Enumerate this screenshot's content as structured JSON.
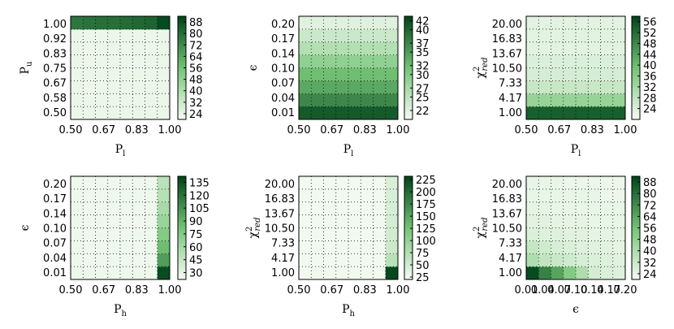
{
  "colormap": {
    "low": "#f7fcf5",
    "mid": "#74c476",
    "high": "#00441b"
  },
  "chart_data": [
    {
      "type": "heatmap",
      "xlabel": "Pl",
      "xlabel_sub": "l",
      "xlabel_base": "P",
      "ylabel_base": "P",
      "ylabel_sub": "u",
      "x_ticks": [
        "0.50",
        "0.67",
        "0.83",
        "1.00"
      ],
      "y_ticks": [
        "0.50",
        "0.58",
        "0.67",
        "0.75",
        "0.83",
        "0.92",
        "1.00"
      ],
      "colorbar_ticks": [
        "24",
        "32",
        "40",
        "48",
        "56",
        "64",
        "72",
        "80",
        "88"
      ],
      "vmin": 20,
      "vmax": 92,
      "values": [
        [
          23,
          23,
          23,
          23,
          23,
          23,
          23,
          23
        ],
        [
          23,
          23,
          23,
          23,
          23,
          23,
          23,
          23
        ],
        [
          23,
          23,
          23,
          23,
          23,
          23,
          23,
          23
        ],
        [
          23,
          23,
          23,
          23,
          23,
          23,
          23,
          23
        ],
        [
          23,
          23,
          23,
          23,
          23,
          23,
          23,
          23
        ],
        [
          23,
          23,
          23,
          23,
          23,
          23,
          23,
          23
        ],
        [
          23,
          23,
          23,
          23,
          23,
          23,
          23,
          23
        ],
        [
          78,
          79,
          80,
          80,
          81,
          82,
          83,
          90
        ]
      ]
    },
    {
      "type": "heatmap",
      "xlabel_base": "P",
      "xlabel_sub": "l",
      "ylabel_symbol": "ϵ",
      "x_ticks": [
        "0.50",
        "0.67",
        "0.83",
        "1.00"
      ],
      "y_ticks": [
        "0.01",
        "0.04",
        "0.07",
        "0.10",
        "0.14",
        "0.17",
        "0.20"
      ],
      "colorbar_ticks": [
        "22",
        "25",
        "27",
        "30",
        "32",
        "35",
        "37",
        "40",
        "42"
      ],
      "vmin": 20,
      "vmax": 43,
      "values": [
        [
          41,
          41,
          41,
          41,
          41,
          41,
          41,
          41
        ],
        [
          37,
          37,
          37,
          37,
          37,
          37,
          37,
          37
        ],
        [
          34,
          34,
          34,
          34,
          34,
          34,
          34,
          34
        ],
        [
          32,
          32,
          32,
          32,
          32,
          32,
          32,
          32
        ],
        [
          29,
          29,
          29,
          29,
          29,
          29,
          29,
          29
        ],
        [
          26,
          26,
          26,
          26,
          26,
          26,
          26,
          26
        ],
        [
          24,
          24,
          24,
          24,
          24,
          24,
          24,
          24
        ],
        [
          22,
          22,
          22,
          22,
          22,
          22,
          22,
          22
        ]
      ]
    },
    {
      "type": "heatmap",
      "xlabel_base": "P",
      "xlabel_sub": "l",
      "ylabel_base": "χ",
      "ylabel_sub": "red",
      "ylabel_sup": "2",
      "x_ticks": [
        "0.50",
        "0.67",
        "0.83",
        "1.00"
      ],
      "y_ticks": [
        "1.00",
        "4.17",
        "7.33",
        "10.50",
        "13.67",
        "16.83",
        "20.00"
      ],
      "colorbar_ticks": [
        "24",
        "28",
        "32",
        "36",
        "40",
        "44",
        "48",
        "52",
        "56"
      ],
      "vmin": 20,
      "vmax": 58,
      "values": [
        [
          54,
          54,
          54,
          54,
          54,
          54,
          54,
          54
        ],
        [
          34,
          34,
          34,
          34,
          34,
          34,
          34,
          34
        ],
        [
          27,
          27,
          27,
          27,
          27,
          27,
          27,
          27
        ],
        [
          25,
          25,
          25,
          25,
          25,
          25,
          25,
          25
        ],
        [
          24,
          24,
          24,
          24,
          24,
          24,
          24,
          24
        ],
        [
          23,
          23,
          23,
          23,
          23,
          23,
          23,
          23
        ],
        [
          23,
          23,
          23,
          23,
          23,
          23,
          23,
          23
        ],
        [
          23,
          23,
          23,
          23,
          23,
          23,
          23,
          23
        ]
      ]
    },
    {
      "type": "heatmap",
      "xlabel_base": "P",
      "xlabel_sub": "h",
      "ylabel_symbol": "ϵ",
      "x_ticks": [
        "0.50",
        "0.67",
        "0.83",
        "1.00"
      ],
      "y_ticks": [
        "0.01",
        "0.04",
        "0.07",
        "0.10",
        "0.14",
        "0.17",
        "0.20"
      ],
      "colorbar_ticks": [
        "30",
        "45",
        "60",
        "75",
        "90",
        "105",
        "120",
        "135"
      ],
      "vmin": 22,
      "vmax": 142,
      "values": [
        [
          26,
          26,
          26,
          26,
          26,
          26,
          26,
          138
        ],
        [
          26,
          26,
          26,
          26,
          26,
          26,
          26,
          100
        ],
        [
          26,
          26,
          26,
          26,
          26,
          26,
          26,
          85
        ],
        [
          26,
          26,
          26,
          26,
          26,
          26,
          26,
          75
        ],
        [
          26,
          26,
          26,
          26,
          26,
          26,
          26,
          65
        ],
        [
          26,
          26,
          26,
          26,
          26,
          26,
          26,
          58
        ],
        [
          26,
          26,
          26,
          26,
          26,
          26,
          26,
          52
        ],
        [
          26,
          26,
          26,
          26,
          26,
          26,
          26,
          50
        ]
      ]
    },
    {
      "type": "heatmap",
      "xlabel_base": "P",
      "xlabel_sub": "h",
      "ylabel_base": "χ",
      "ylabel_sub": "red",
      "ylabel_sup": "2",
      "x_ticks": [
        "0.50",
        "0.67",
        "0.83",
        "1.00"
      ],
      "y_ticks": [
        "1.00",
        "4.17",
        "7.33",
        "10.50",
        "13.67",
        "16.83",
        "20.00"
      ],
      "colorbar_ticks": [
        "25",
        "50",
        "75",
        "100",
        "125",
        "150",
        "175",
        "200",
        "225"
      ],
      "vmin": 20,
      "vmax": 232,
      "values": [
        [
          24,
          24,
          24,
          24,
          24,
          24,
          24,
          228
        ],
        [
          24,
          24,
          24,
          24,
          24,
          24,
          24,
          70
        ],
        [
          24,
          24,
          24,
          24,
          24,
          24,
          24,
          55
        ],
        [
          24,
          24,
          24,
          24,
          24,
          24,
          24,
          50
        ],
        [
          24,
          24,
          24,
          24,
          24,
          24,
          24,
          48
        ],
        [
          24,
          24,
          24,
          24,
          24,
          24,
          24,
          46
        ],
        [
          24,
          24,
          24,
          24,
          24,
          24,
          24,
          45
        ],
        [
          24,
          24,
          24,
          24,
          24,
          24,
          24,
          44
        ]
      ]
    },
    {
      "type": "heatmap",
      "xlabel_symbol": "ϵ",
      "ylabel_base": "χ",
      "ylabel_sub": "red",
      "ylabel_sup": "2",
      "x_ticks": [
        "0.01",
        "0.04",
        "0.07",
        "0.10",
        "0.14",
        "0.17",
        "0.20"
      ],
      "y_ticks": [
        "1.00",
        "4.17",
        "7.33",
        "10.50",
        "13.67",
        "16.83",
        "20.00"
      ],
      "colorbar_ticks": [
        "24",
        "32",
        "40",
        "48",
        "56",
        "64",
        "72",
        "80",
        "88"
      ],
      "vmin": 20,
      "vmax": 92,
      "values": [
        [
          90,
          75,
          65,
          52,
          40,
          30,
          28,
          27
        ],
        [
          40,
          35,
          33,
          31,
          29,
          28,
          27,
          26
        ],
        [
          34,
          31,
          29,
          28,
          27,
          26,
          26,
          25
        ],
        [
          28,
          27,
          27,
          26,
          26,
          25,
          25,
          25
        ],
        [
          26,
          26,
          25,
          25,
          25,
          24,
          24,
          24
        ],
        [
          25,
          25,
          24,
          24,
          24,
          24,
          24,
          24
        ],
        [
          24,
          24,
          24,
          24,
          24,
          24,
          23,
          23
        ],
        [
          24,
          24,
          24,
          23,
          23,
          23,
          23,
          23
        ]
      ]
    }
  ]
}
